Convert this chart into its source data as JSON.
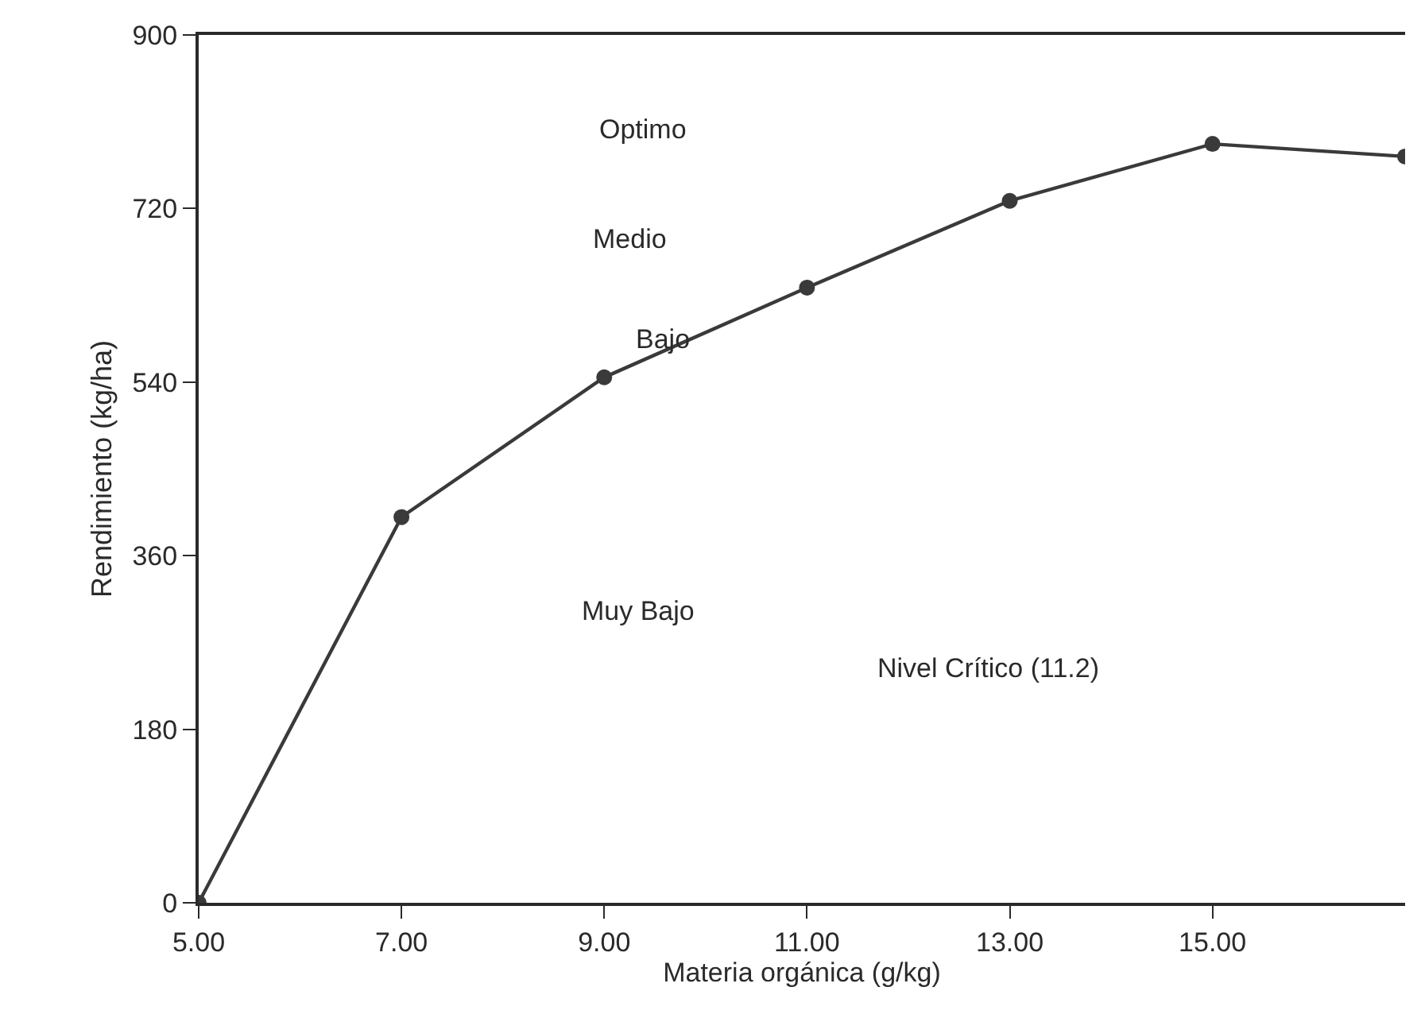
{
  "chart_data": {
    "type": "line",
    "xlabel": "Materia orgánica (g/kg)",
    "ylabel": "Rendimiento (kg/ha)",
    "x": [
      5,
      7,
      9,
      11,
      13,
      15,
      16.9
    ],
    "series": [
      {
        "color": "#3a3a3a",
        "values": [
          0,
          400,
          545,
          638,
          728,
          787,
          774
        ]
      }
    ],
    "xlim": [
      5,
      16.9
    ],
    "ylim": [
      0,
      900
    ],
    "xticks": [
      {
        "value": 5,
        "label": "5.00"
      },
      {
        "value": 7,
        "label": "7.00"
      },
      {
        "value": 9,
        "label": "9.00"
      },
      {
        "value": 11,
        "label": "11.00"
      },
      {
        "value": 13,
        "label": "13.00"
      },
      {
        "value": 15,
        "label": "15.00"
      }
    ],
    "yticks": [
      0,
      180,
      360,
      540,
      720,
      900
    ],
    "annotations": [
      "Optimo",
      "Medio",
      "Bajo",
      "Muy Bajo",
      "Nivel Crítico (11.2)"
    ],
    "marker": "circle",
    "line_style": "solid"
  }
}
